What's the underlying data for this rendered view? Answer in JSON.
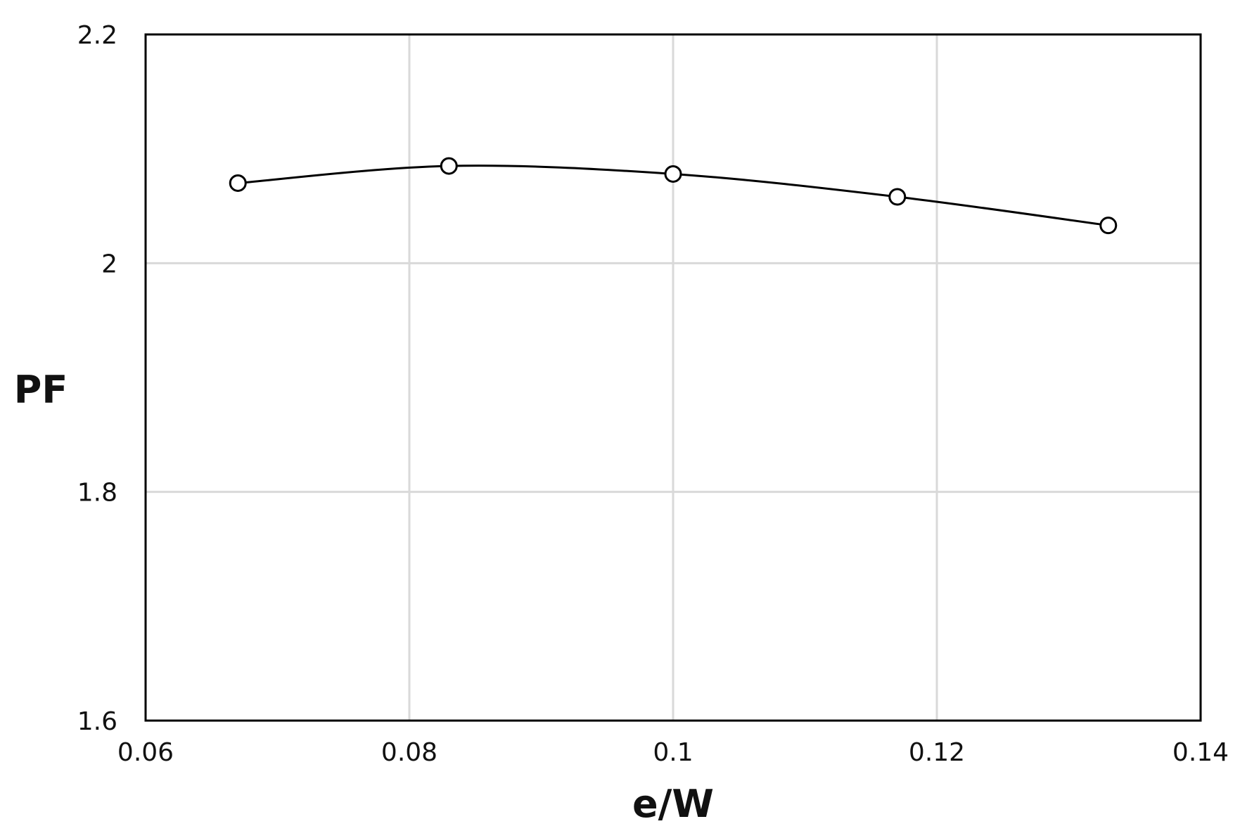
{
  "chart_data": {
    "type": "scatter",
    "title": "",
    "xlabel": "e/W",
    "ylabel": "PF",
    "xlim": [
      0.06,
      0.14
    ],
    "ylim": [
      1.6,
      2.2
    ],
    "xticks": [
      0.06,
      0.08,
      0.1,
      0.12,
      0.14
    ],
    "yticks": [
      1.6,
      1.8,
      2,
      2.2
    ],
    "xtick_labels": [
      "0.06",
      "0.08",
      "0.1",
      "0.12",
      "0.14"
    ],
    "ytick_labels": [
      "1.6",
      "1.8",
      "2",
      "2.2"
    ],
    "grid": true,
    "legend": "none",
    "series": [
      {
        "x": [
          0.067,
          0.083,
          0.1,
          0.117,
          0.133
        ],
        "y": [
          2.07,
          2.085,
          2.078,
          2.058,
          2.033
        ],
        "marker": "open-circle",
        "line": "smooth",
        "color": "#000000"
      }
    ]
  },
  "colors": {
    "grid": "#d9d9d9",
    "axis": "#000000",
    "marker_fill": "#ffffff"
  }
}
